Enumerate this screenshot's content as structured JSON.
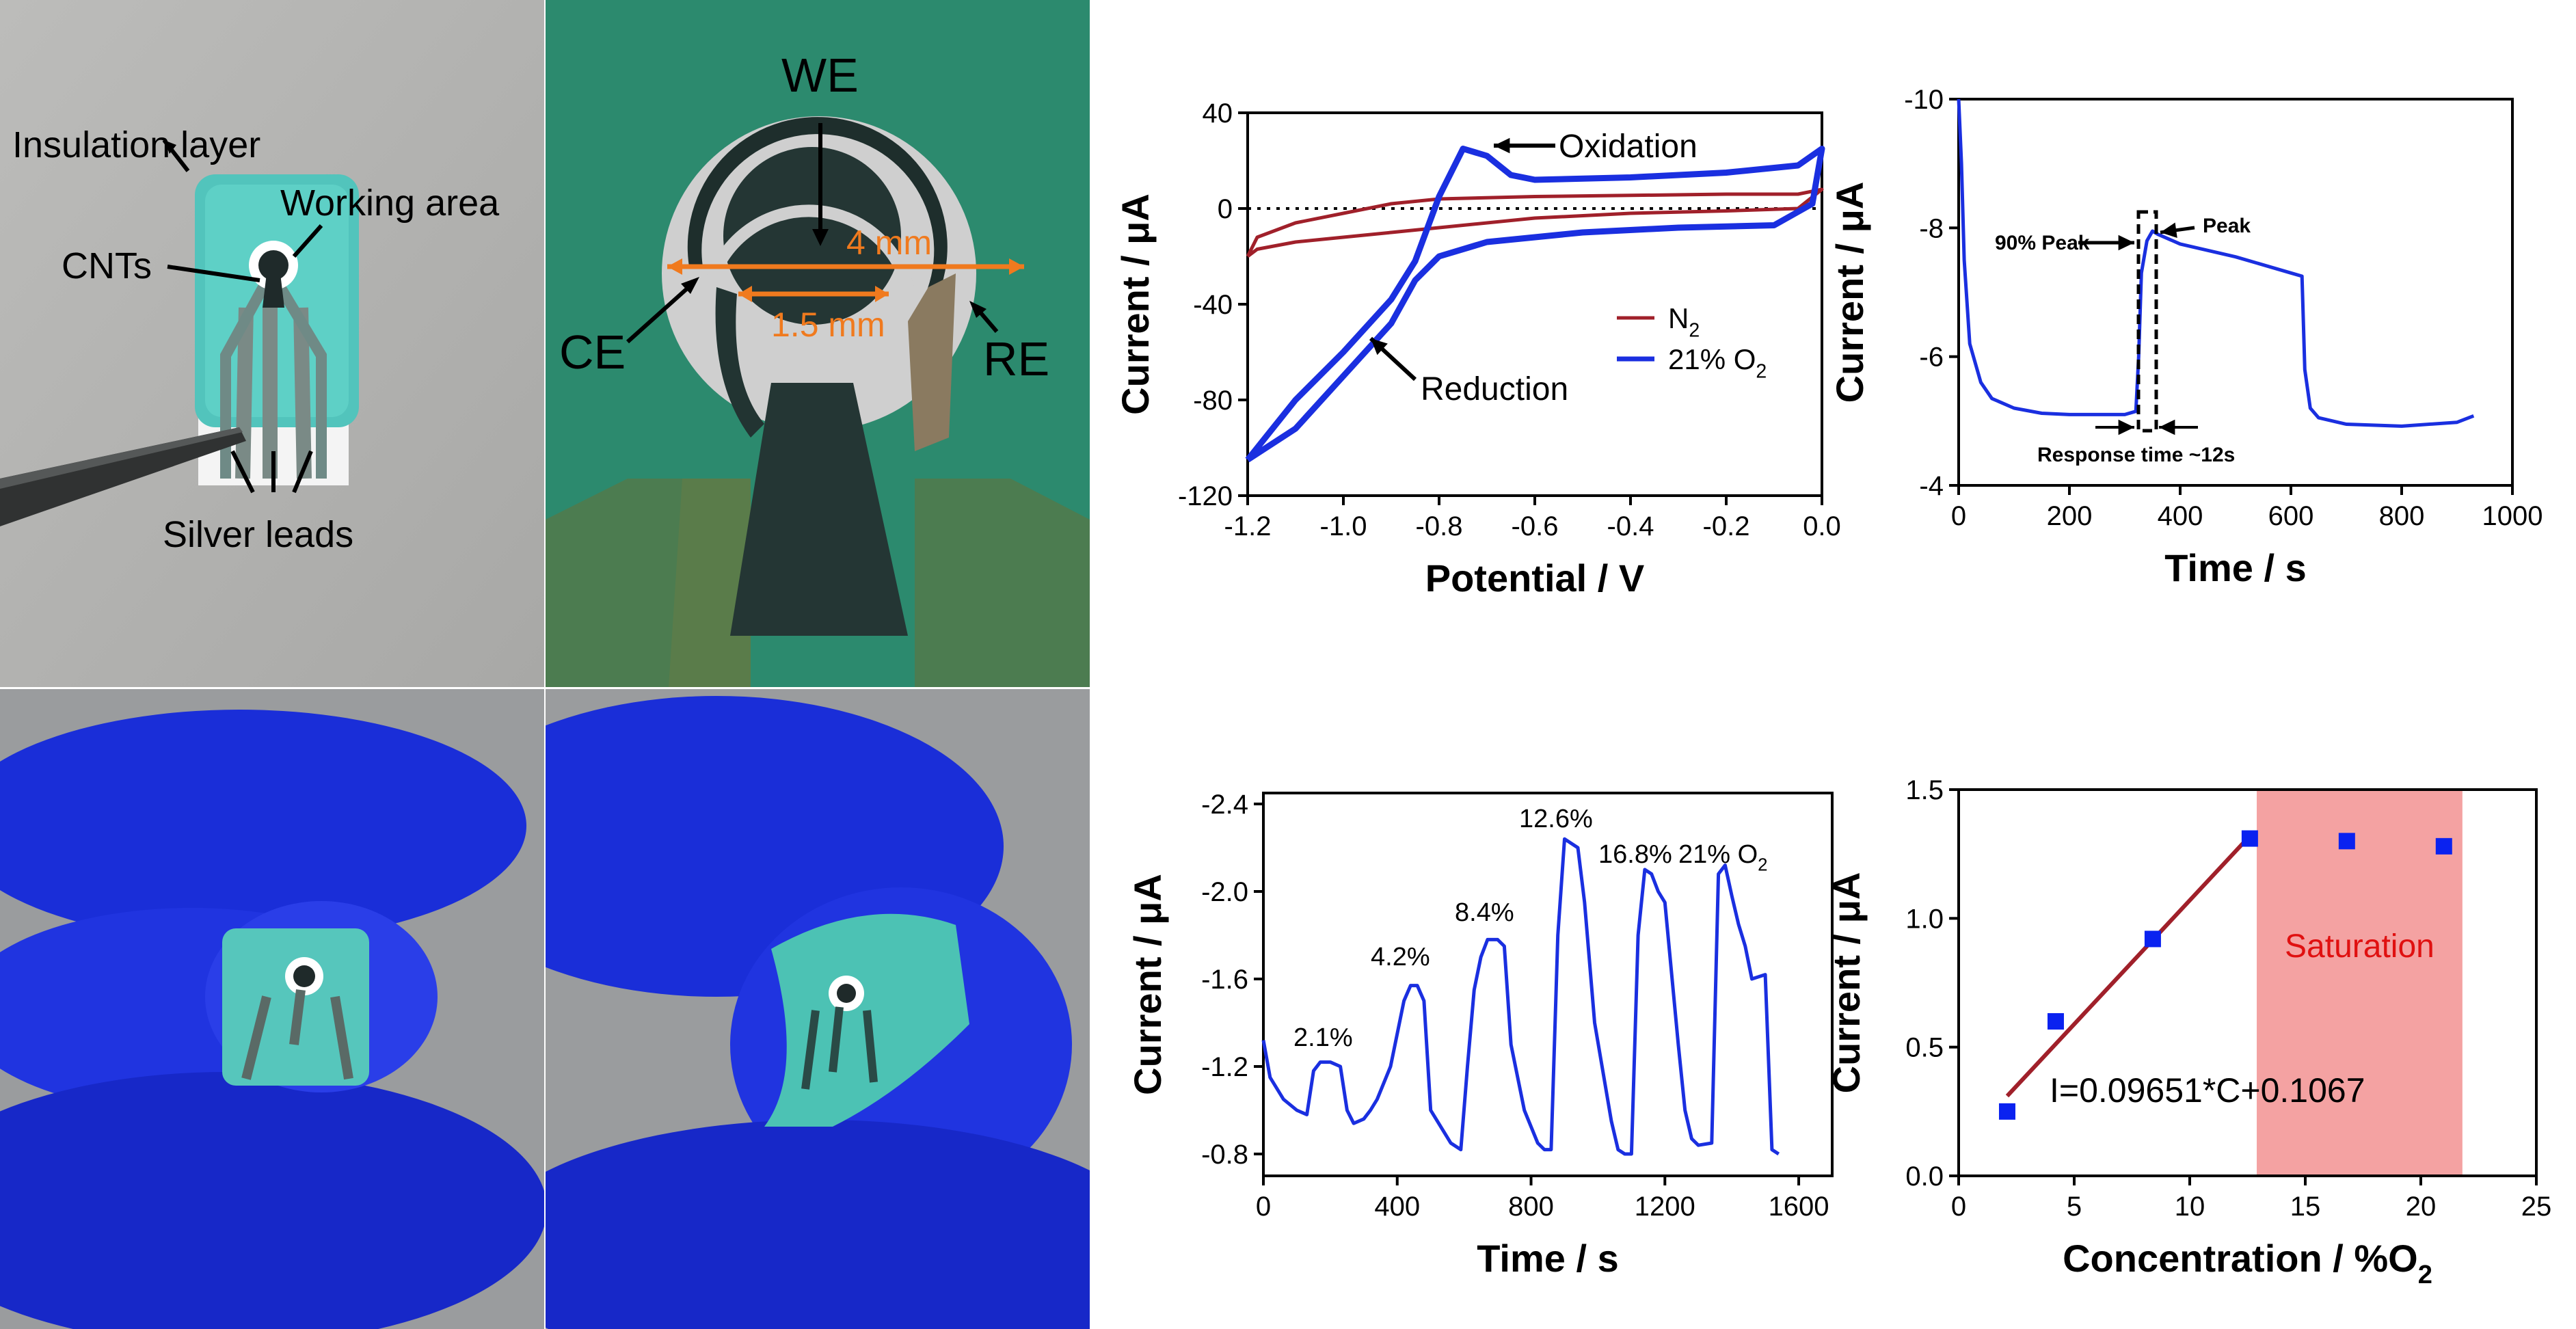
{
  "photo_labels": {
    "p1": {
      "insulation": "Insulation layer",
      "working": "Working area",
      "cnts": "CNTs",
      "silver": "Silver leads"
    },
    "p2": {
      "we": "WE",
      "ce": "CE",
      "re": "RE",
      "d4": "4 mm",
      "d15": "1.5 mm"
    }
  },
  "colors": {
    "n2": "#a0202a",
    "o2": "#1a2fe0",
    "saturation": "#f4a2a2",
    "fit": "#a0202a",
    "marker": "#0a22f0",
    "saturation_text": "#e01010"
  },
  "chart_data": [
    {
      "type": "line",
      "xlabel": "Potential / V",
      "ylabel": "Current / μA",
      "xlim": [
        -1.2,
        0.0
      ],
      "ylim": [
        -120,
        40
      ],
      "xticks": [
        "-1.2",
        "-1.0",
        "-0.8",
        "-0.6",
        "-0.4",
        "-0.2",
        "0.0"
      ],
      "yticks": [
        "40",
        "0",
        "-40",
        "-80",
        "-120"
      ],
      "series": [
        {
          "name": "N2",
          "label_main": "N",
          "label_sub": "2",
          "x": [
            -1.2,
            -1.18,
            -1.1,
            -1.0,
            -0.9,
            -0.8,
            -0.6,
            -0.4,
            -0.2,
            -0.05,
            0.0,
            -0.05,
            -0.2,
            -0.4,
            -0.6,
            -0.8,
            -0.85,
            -0.9,
            -1.0,
            -1.1,
            -1.18,
            -1.2
          ],
          "y": [
            -20,
            -12,
            -6,
            -2,
            2,
            4,
            5,
            5.5,
            6,
            6,
            8,
            0,
            -1,
            -2,
            -4,
            -8,
            -9,
            -10,
            -12,
            -14,
            -17,
            -20
          ]
        },
        {
          "name": "21% O2",
          "label_main": "21% O",
          "label_sub": "2",
          "x": [
            -1.2,
            -1.1,
            -1.0,
            -0.9,
            -0.85,
            -0.8,
            -0.75,
            -0.7,
            -0.65,
            -0.6,
            -0.4,
            -0.2,
            -0.05,
            0.0,
            -0.02,
            -0.1,
            -0.3,
            -0.5,
            -0.7,
            -0.8,
            -0.85,
            -0.9,
            -1.0,
            -1.1,
            -1.2
          ],
          "y": [
            -105,
            -80,
            -60,
            -38,
            -22,
            5,
            25,
            22,
            14,
            12,
            13,
            15,
            18,
            25,
            2,
            -7,
            -8,
            -10,
            -14,
            -20,
            -30,
            -48,
            -70,
            -92,
            -105
          ]
        }
      ],
      "annotations": [
        "Oxidation",
        "Reduction"
      ],
      "legend": "right"
    },
    {
      "type": "line",
      "xlabel": "Time / s",
      "ylabel": "Current / μA",
      "xlim": [
        0,
        1000
      ],
      "ylim": [
        -4,
        -10
      ],
      "xticks": [
        "0",
        "200",
        "400",
        "600",
        "800",
        "1000"
      ],
      "yticks": [
        "-10",
        "-8",
        "-6",
        "-4"
      ],
      "series": [
        {
          "x": [
            0,
            5,
            10,
            20,
            40,
            60,
            100,
            150,
            200,
            250,
            300,
            320,
            325,
            330,
            340,
            350,
            360,
            400,
            500,
            600,
            620,
            625,
            635,
            650,
            700,
            800,
            900,
            930
          ],
          "y": [
            -10.0,
            -9.0,
            -7.5,
            -6.2,
            -5.6,
            -5.35,
            -5.2,
            -5.12,
            -5.1,
            -5.1,
            -5.1,
            -5.15,
            -6.0,
            -7.3,
            -7.8,
            -7.95,
            -7.9,
            -7.75,
            -7.55,
            -7.3,
            -7.25,
            -5.8,
            -5.2,
            -5.05,
            -4.95,
            -4.92,
            -4.98,
            -5.08
          ]
        }
      ],
      "annotations": [
        "90% Peak",
        "Peak",
        "Response time ~12s"
      ]
    },
    {
      "type": "line",
      "xlabel": "Time / s",
      "ylabel": "Current / μA",
      "xlim": [
        0,
        1700
      ],
      "ylim": [
        -0.7,
        -2.45
      ],
      "xticks": [
        "0",
        "400",
        "800",
        "1200",
        "1600"
      ],
      "yticks": [
        "-2.4",
        "-2.0",
        "-1.6",
        "-1.2",
        "-0.8"
      ],
      "series": [
        {
          "x": [
            0,
            20,
            60,
            100,
            130,
            150,
            170,
            200,
            230,
            250,
            270,
            300,
            320,
            340,
            380,
            420,
            440,
            460,
            480,
            500,
            560,
            590,
            610,
            630,
            650,
            670,
            700,
            720,
            740,
            780,
            820,
            840,
            860,
            880,
            900,
            940,
            960,
            990,
            1040,
            1060,
            1080,
            1100,
            1120,
            1140,
            1160,
            1180,
            1200,
            1240,
            1260,
            1280,
            1300,
            1340,
            1360,
            1380,
            1400,
            1420,
            1440,
            1460,
            1500,
            1520,
            1540
          ],
          "y": [
            -1.32,
            -1.15,
            -1.05,
            -1.0,
            -0.98,
            -1.18,
            -1.22,
            -1.22,
            -1.2,
            -1.0,
            -0.94,
            -0.96,
            -1.0,
            -1.05,
            -1.2,
            -1.5,
            -1.57,
            -1.57,
            -1.5,
            -1.0,
            -0.85,
            -0.82,
            -1.2,
            -1.55,
            -1.7,
            -1.78,
            -1.78,
            -1.75,
            -1.3,
            -1.0,
            -0.85,
            -0.82,
            -0.82,
            -1.8,
            -2.24,
            -2.2,
            -1.95,
            -1.4,
            -0.95,
            -0.82,
            -0.8,
            -0.8,
            -1.8,
            -2.1,
            -2.08,
            -2.0,
            -1.95,
            -1.3,
            -1.0,
            -0.87,
            -0.84,
            -0.85,
            -2.08,
            -2.12,
            -1.98,
            -1.85,
            -1.75,
            -1.6,
            -1.62,
            -0.82,
            -0.8
          ]
        }
      ],
      "annotations": [
        "2.1%",
        "4.2%",
        "8.4%",
        "12.6%",
        "16.8%",
        "21% O",
        "2"
      ]
    },
    {
      "type": "scatter",
      "xlabel": "Concentration / %O",
      "xlabel_sub": "2",
      "ylabel": "Current / μA",
      "xlim": [
        0,
        25
      ],
      "ylim": [
        0,
        1.5
      ],
      "xticks": [
        "0",
        "5",
        "10",
        "15",
        "20",
        "25"
      ],
      "yticks": [
        "0.0",
        "0.5",
        "1.0",
        "1.5"
      ],
      "series": [
        {
          "name": "data",
          "x": [
            2.1,
            4.2,
            8.4,
            12.6,
            16.8,
            21
          ],
          "y": [
            0.25,
            0.6,
            0.92,
            1.31,
            1.3,
            1.28
          ]
        }
      ],
      "fit": {
        "x": [
          2.1,
          12.6
        ],
        "y": [
          0.31,
          1.32
        ],
        "equation": "I=0.09651*C+0.1067"
      },
      "region": {
        "label": "Saturation",
        "x": [
          12.9,
          21.8
        ]
      }
    }
  ]
}
